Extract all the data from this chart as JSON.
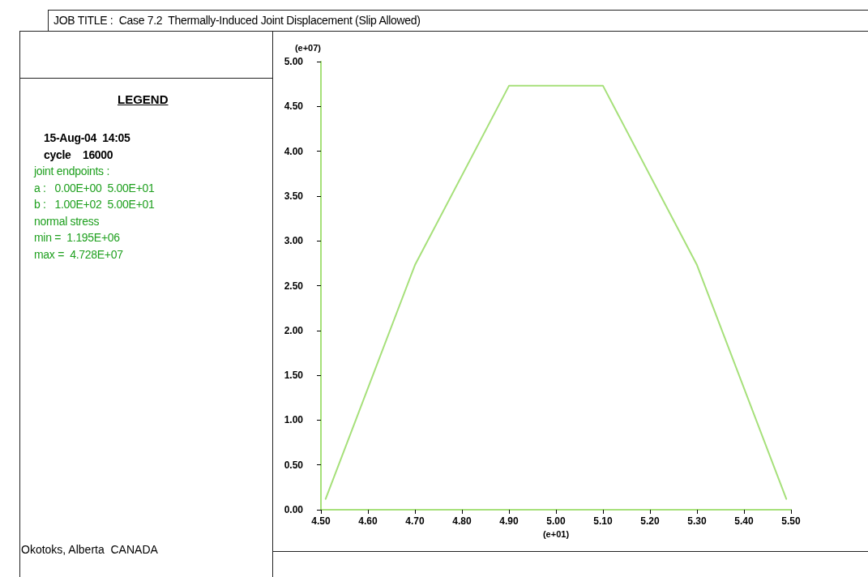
{
  "chart_data": {
    "type": "line",
    "title": "JOB TITLE :  Case 7.2  Thermally-Induced Joint Displacement (Slip Allowed)",
    "legend_title": "LEGEND",
    "xlabel": "(e+01)",
    "ylabel": "(e+07)",
    "annotations": [
      "15-Aug-04  14:05",
      "cycle    16000",
      "joint endpoints :",
      "a :   0.00E+00  5.00E+01",
      "b :   1.00E+02  5.00E+01",
      "normal stress",
      "min =  1.195E+06",
      "max =  4.728E+07",
      "Okotoks, Alberta  CANADA"
    ],
    "x": [
      4.51,
      4.7,
      4.9,
      5.1,
      5.3,
      5.49
    ],
    "series": [
      {
        "color": "#a6e07a",
        "values": [
          0.12,
          2.73,
          4.73,
          4.73,
          2.73,
          0.12
        ]
      }
    ],
    "xlim": [
      4.5,
      5.5
    ],
    "ylim": [
      0,
      5
    ],
    "xticks": [
      {
        "value": 4.5,
        "label": "4.50"
      },
      {
        "value": 4.6,
        "label": "4.60"
      },
      {
        "value": 4.7,
        "label": "4.70"
      },
      {
        "value": 4.8,
        "label": "4.80"
      },
      {
        "value": 4.9,
        "label": "4.90"
      },
      {
        "value": 5.0,
        "label": "5.00"
      },
      {
        "value": 5.1,
        "label": "5.10"
      },
      {
        "value": 5.2,
        "label": "5.20"
      },
      {
        "value": 5.3,
        "label": "5.30"
      },
      {
        "value": 5.4,
        "label": "5.40"
      },
      {
        "value": 5.5,
        "label": "5.50"
      }
    ],
    "yticks": [
      {
        "value": 0,
        "label": "0.00"
      },
      {
        "value": 0.5,
        "label": "0.50"
      },
      {
        "value": 1,
        "label": "1.00"
      },
      {
        "value": 1.5,
        "label": "1.50"
      },
      {
        "value": 2,
        "label": "2.00"
      },
      {
        "value": 2.5,
        "label": "2.50"
      },
      {
        "value": 3,
        "label": "3.00"
      },
      {
        "value": 3.5,
        "label": "3.50"
      },
      {
        "value": 4,
        "label": "4.00"
      },
      {
        "value": 4.5,
        "label": "4.50"
      },
      {
        "value": 5,
        "label": "5.00"
      }
    ],
    "grid": false,
    "marker": "none",
    "line_style": "solid"
  }
}
